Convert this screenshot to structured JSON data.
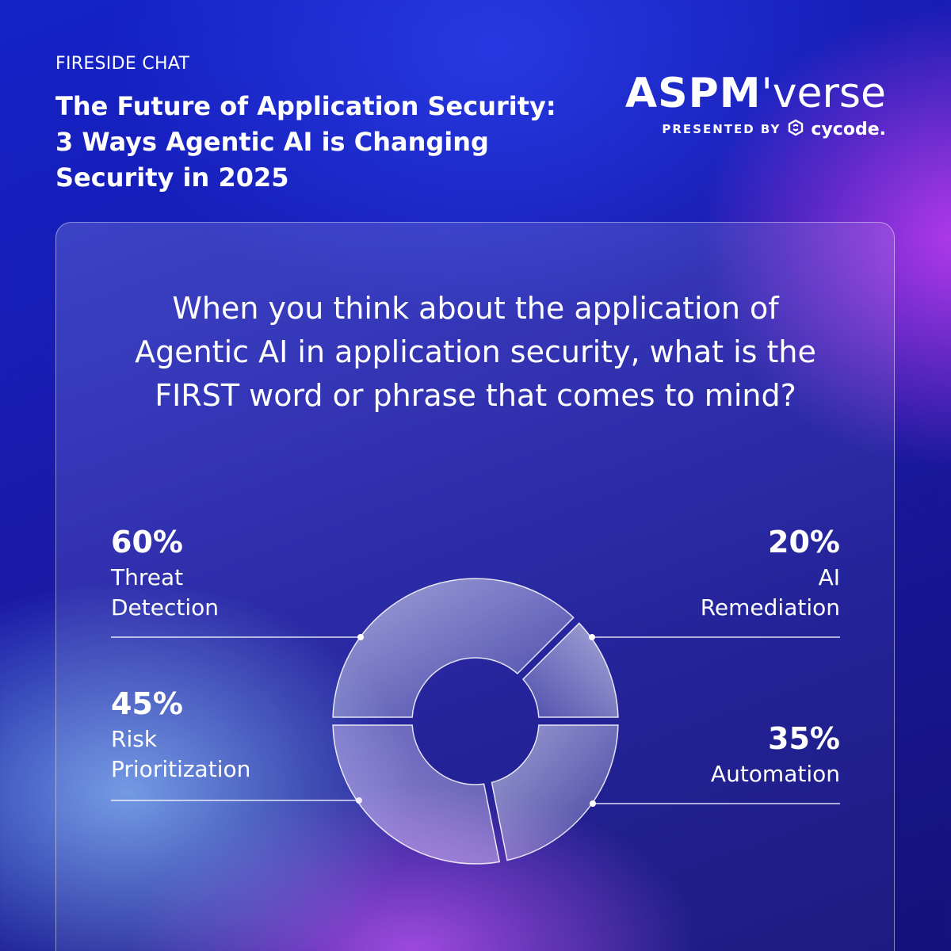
{
  "header": {
    "tag": "FIRESIDE CHAT",
    "title": "The Future of Application Security: 3 Ways Agentic AI is Changing Security in 2025"
  },
  "brand": {
    "name_strong": "ASPM",
    "name_light": "'verse",
    "presented_by": "PRESENTED BY",
    "company": "cycode.",
    "logo_icon": "cycode-logo-icon"
  },
  "colors": {
    "background": "#1a1aa8",
    "accent_purple": "#be3cf0",
    "text": "#ffffff"
  },
  "question": "When you think about the application of Agentic AI in application security, what is the FIRST word or phrase that comes to mind?",
  "chart_data": {
    "type": "pie",
    "variant": "donut",
    "title": "",
    "categories": [
      "Threat Detection",
      "AI Remediation",
      "Automation",
      "Risk Prioritization"
    ],
    "values": [
      60,
      20,
      35,
      45
    ],
    "value_labels": [
      "60%",
      "20%",
      "35%",
      "45%"
    ],
    "legend": "callout labels with leader lines",
    "stats": {
      "threat": {
        "pct": "60%",
        "label": "Threat Detection"
      },
      "remed": {
        "pct": "20%",
        "label": "AI Remediation"
      },
      "auto": {
        "pct": "35%",
        "label": "Automation"
      },
      "risk": {
        "pct": "45%",
        "label": "Risk Prioritization"
      }
    }
  }
}
